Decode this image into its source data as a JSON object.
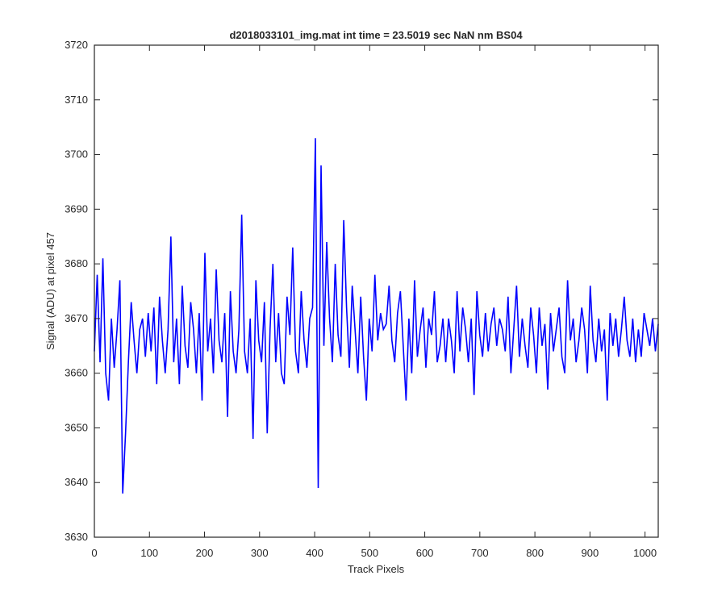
{
  "chart_data": {
    "type": "line",
    "title": "d2018033101_img.mat int time = 23.5019 sec  NaN nm BS04",
    "xlabel": "Track Pixels",
    "ylabel": "Signal (ADU) at pixel 457",
    "xlim": [
      0,
      1024
    ],
    "ylim": [
      3630,
      3720
    ],
    "xticks": [
      0,
      100,
      200,
      300,
      400,
      500,
      600,
      700,
      800,
      900,
      1000
    ],
    "yticks": [
      3630,
      3640,
      3650,
      3660,
      3670,
      3680,
      3690,
      3700,
      3710,
      3720
    ],
    "grid": false,
    "colors": {
      "series": "#0000ff",
      "axes": "#262626",
      "background": "#ffffff"
    },
    "series": [
      {
        "y": [
          3664,
          3678,
          3662,
          3681,
          3660,
          3655,
          3670,
          3661,
          3668,
          3677,
          3638,
          3649,
          3662,
          3673,
          3666,
          3660,
          3668,
          3670,
          3663,
          3671,
          3664,
          3672,
          3658,
          3674,
          3666,
          3660,
          3668,
          3685,
          3662,
          3670,
          3658,
          3676,
          3665,
          3661,
          3673,
          3668,
          3660,
          3671,
          3655,
          3682,
          3664,
          3670,
          3660,
          3679,
          3666,
          3662,
          3671,
          3652,
          3675,
          3664,
          3660,
          3668,
          3689,
          3664,
          3660,
          3670,
          3648,
          3677,
          3666,
          3662,
          3673,
          3649,
          3668,
          3680,
          3662,
          3671,
          3660,
          3658,
          3674,
          3667,
          3683,
          3664,
          3660,
          3675,
          3666,
          3661,
          3670,
          3672,
          3703,
          3639,
          3698,
          3665,
          3684,
          3670,
          3662,
          3680,
          3667,
          3663,
          3688,
          3672,
          3661,
          3676,
          3668,
          3660,
          3674,
          3663,
          3655,
          3670,
          3664,
          3678,
          3666,
          3671,
          3668,
          3669,
          3676,
          3666,
          3662,
          3671,
          3675,
          3665,
          3655,
          3670,
          3660,
          3677,
          3663,
          3668,
          3672,
          3661,
          3670,
          3667,
          3675,
          3662,
          3665,
          3670,
          3662,
          3670,
          3666,
          3660,
          3675,
          3664,
          3672,
          3668,
          3662,
          3670,
          3656,
          3675,
          3667,
          3663,
          3671,
          3664,
          3669,
          3672,
          3665,
          3670,
          3668,
          3664,
          3674,
          3660,
          3668,
          3676,
          3663,
          3670,
          3665,
          3661,
          3672,
          3667,
          3660,
          3672,
          3665,
          3669,
          3657,
          3671,
          3664,
          3668,
          3672,
          3663,
          3660,
          3677,
          3666,
          3670,
          3662,
          3666,
          3672,
          3668,
          3660,
          3676,
          3666,
          3662,
          3670,
          3664,
          3668,
          3655,
          3671,
          3665,
          3670,
          3663,
          3668,
          3674,
          3666,
          3663,
          3670,
          3662,
          3668,
          3663,
          3671,
          3668,
          3665,
          3670,
          3664,
          3669
        ]
      }
    ]
  }
}
